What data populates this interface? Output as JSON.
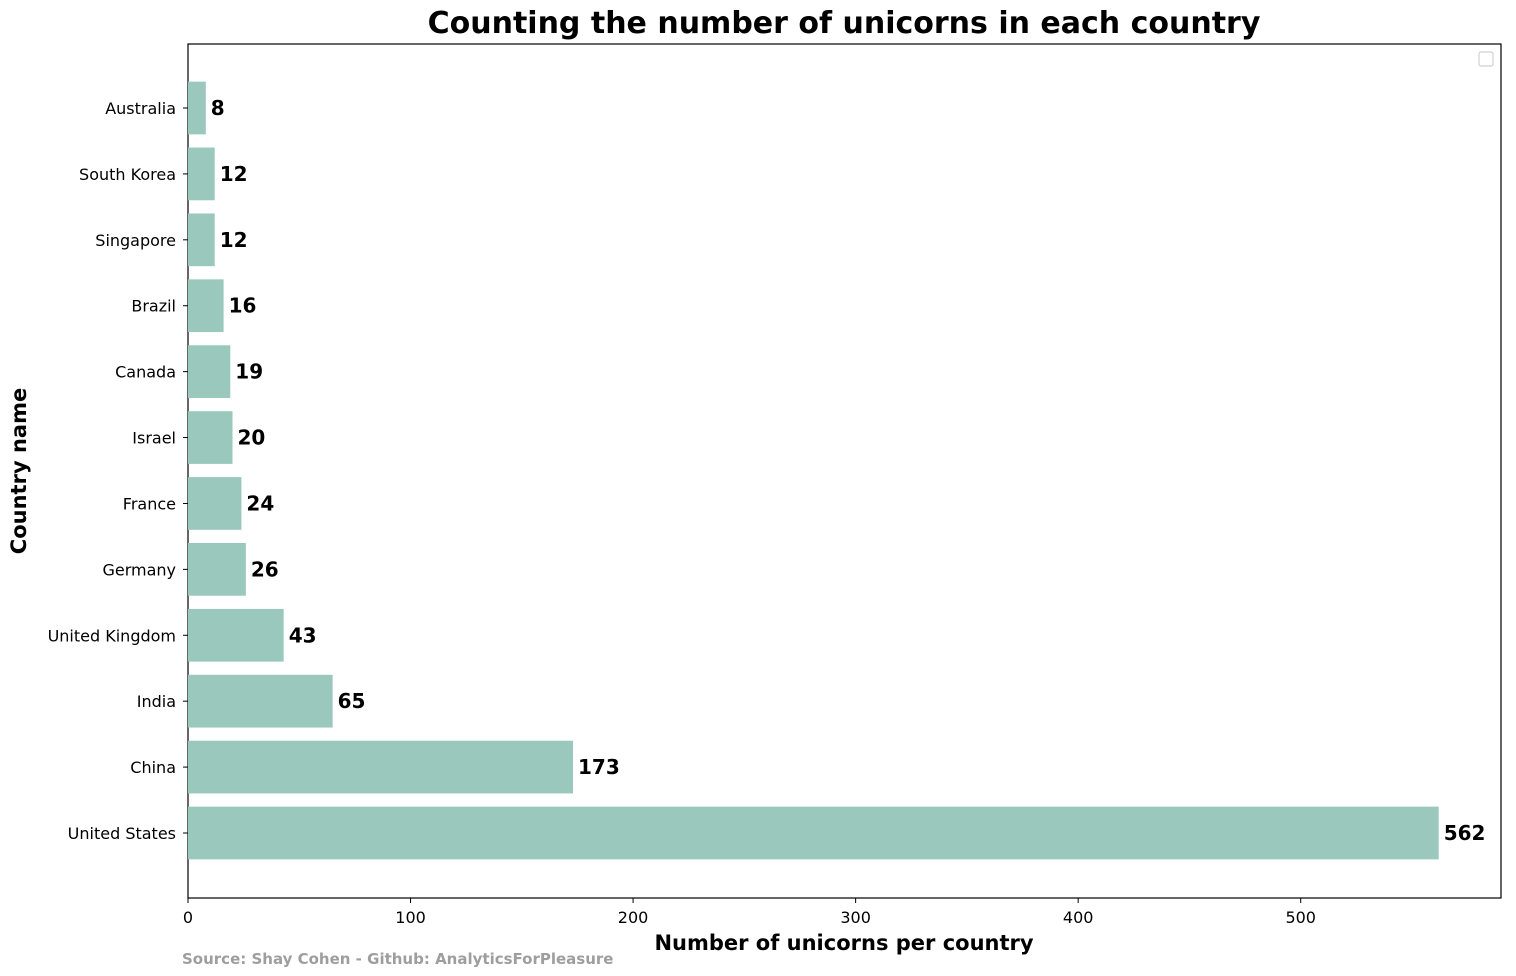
{
  "chart_data": {
    "type": "bar",
    "orientation": "horizontal",
    "title": "Counting the number of unicorns in each country",
    "xlabel": "Number of unicorns per country",
    "ylabel": "Country name",
    "source": "Source: Shay Cohen - Github: AnalyticsForPleasure",
    "categories": [
      "United States",
      "China",
      "India",
      "United Kingdom",
      "Germany",
      "France",
      "Israel",
      "Canada",
      "Brazil",
      "Singapore",
      "South Korea",
      "Australia"
    ],
    "values": [
      562,
      173,
      65,
      43,
      26,
      24,
      20,
      19,
      16,
      12,
      12,
      8
    ],
    "value_labels": [
      "562",
      "173",
      "65",
      "43",
      "26",
      "24",
      "20",
      "19",
      "16",
      "12",
      "12",
      "8"
    ],
    "xlim": [
      0,
      590
    ],
    "xticks": [
      0,
      100,
      200,
      300,
      400,
      500
    ],
    "xtick_labels": [
      "0",
      "100",
      "200",
      "300",
      "400",
      "500"
    ],
    "bar_color": "#9bc8bc",
    "grid": false,
    "legend": {
      "placement": "top-right",
      "entries": []
    }
  }
}
